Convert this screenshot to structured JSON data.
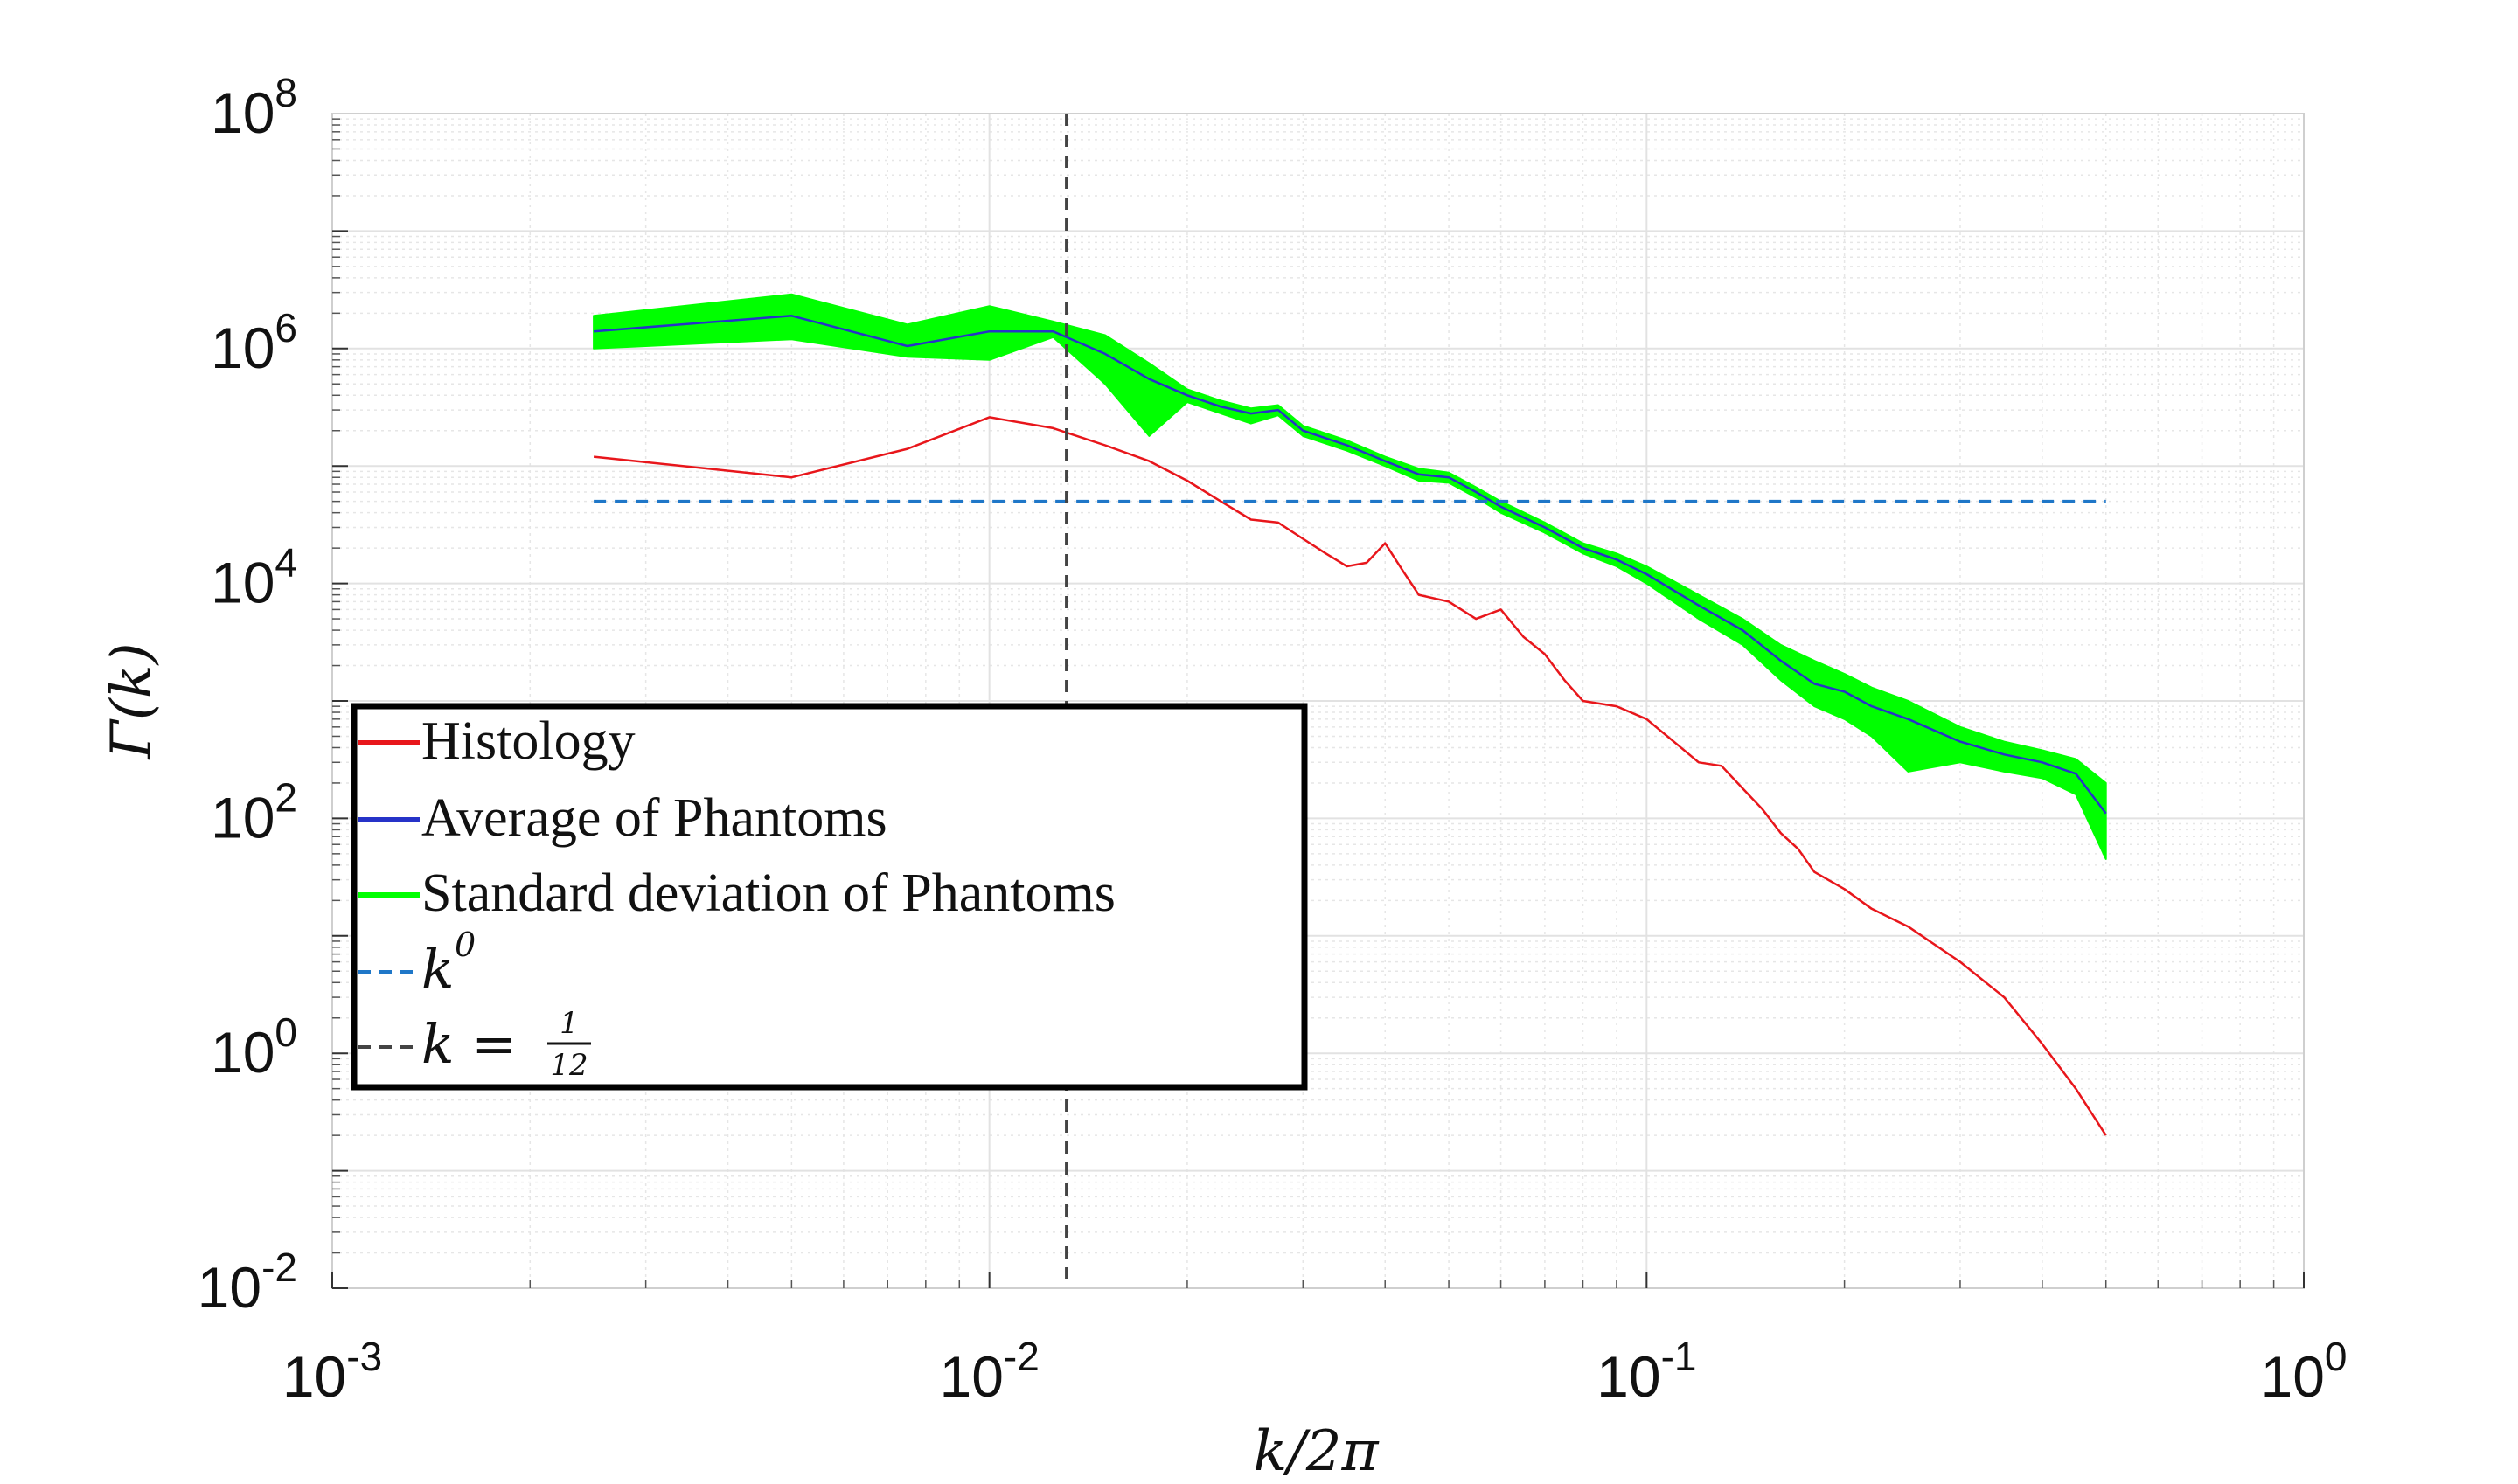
{
  "chart_data": {
    "type": "line",
    "xscale": "log",
    "yscale": "log",
    "xlim": [
      0.001,
      1
    ],
    "ylim": [
      0.01,
      100000000
    ],
    "xticks": [
      {
        "value": 0.001,
        "base": "10",
        "exp": "-3"
      },
      {
        "value": 0.01,
        "base": "10",
        "exp": "-2"
      },
      {
        "value": 0.1,
        "base": "10",
        "exp": "-1"
      },
      {
        "value": 1,
        "base": "10",
        "exp": "0"
      }
    ],
    "yticks": [
      {
        "value": 0.01,
        "base": "10",
        "exp": "-2"
      },
      {
        "value": 1,
        "base": "10",
        "exp": "0"
      },
      {
        "value": 100,
        "base": "10",
        "exp": "2"
      },
      {
        "value": 10000,
        "base": "10",
        "exp": "4"
      },
      {
        "value": 1000000,
        "base": "10",
        "exp": "6"
      },
      {
        "value": 100000000,
        "base": "10",
        "exp": "8"
      }
    ],
    "xlabel": "k/2π",
    "ylabel": "Γ(k)",
    "grid": true,
    "legend_position": "lower-left",
    "legend": [
      {
        "label": "Histology",
        "color": "#e8161b",
        "style": "solid"
      },
      {
        "label": "Average of Phantoms",
        "color": "#2633c8",
        "style": "solid"
      },
      {
        "label": "Standard deviation of Phantoms",
        "color": "#00ff00",
        "style": "solid"
      },
      {
        "label": "k",
        "sup": "0",
        "color": "#1f77c8",
        "style": "dashed"
      },
      {
        "label": "k =",
        "frac_num": "1",
        "frac_den": "12",
        "color": "#444444",
        "style": "dashed"
      }
    ],
    "reference_lines": {
      "horizontal_k0": {
        "y": 50000,
        "x_start": 0.0025,
        "x_end": 0.5
      },
      "vertical": {
        "x": 0.0131
      }
    },
    "series": [
      {
        "name": "Histology",
        "color": "#e8161b",
        "points": [
          [
            0.0025,
            120000
          ],
          [
            0.005,
            80000
          ],
          [
            0.0075,
            140000
          ],
          [
            0.01,
            260000
          ],
          [
            0.0125,
            210000
          ],
          [
            0.015,
            150000
          ],
          [
            0.0175,
            110000
          ],
          [
            0.02,
            75000
          ],
          [
            0.0225,
            50000
          ],
          [
            0.025,
            35000
          ],
          [
            0.0275,
            33000
          ],
          [
            0.03,
            24000
          ],
          [
            0.0325,
            18000
          ],
          [
            0.035,
            14000
          ],
          [
            0.0375,
            15000
          ],
          [
            0.04,
            22000
          ],
          [
            0.0425,
            13000
          ],
          [
            0.045,
            8000
          ],
          [
            0.05,
            7000
          ],
          [
            0.055,
            5000
          ],
          [
            0.06,
            6000
          ],
          [
            0.065,
            3500
          ],
          [
            0.07,
            2500
          ],
          [
            0.075,
            1500
          ],
          [
            0.08,
            1000
          ],
          [
            0.09,
            900
          ],
          [
            0.1,
            700
          ],
          [
            0.11,
            450
          ],
          [
            0.12,
            300
          ],
          [
            0.13,
            280
          ],
          [
            0.14,
            180
          ],
          [
            0.15,
            120
          ],
          [
            0.16,
            75
          ],
          [
            0.17,
            55
          ],
          [
            0.18,
            35
          ],
          [
            0.2,
            25
          ],
          [
            0.22,
            17
          ],
          [
            0.25,
            12
          ],
          [
            0.3,
            6
          ],
          [
            0.35,
            3
          ],
          [
            0.4,
            1.2
          ],
          [
            0.45,
            0.5
          ],
          [
            0.5,
            0.2
          ]
        ]
      },
      {
        "name": "Average of Phantoms",
        "color": "#2633c8",
        "points": [
          [
            0.0025,
            1400000
          ],
          [
            0.005,
            1900000
          ],
          [
            0.0075,
            1050000
          ],
          [
            0.01,
            1400000
          ],
          [
            0.0125,
            1400000
          ],
          [
            0.015,
            900000
          ],
          [
            0.0175,
            550000
          ],
          [
            0.02,
            400000
          ],
          [
            0.0225,
            320000
          ],
          [
            0.025,
            280000
          ],
          [
            0.0275,
            300000
          ],
          [
            0.03,
            200000
          ],
          [
            0.035,
            150000
          ],
          [
            0.04,
            110000
          ],
          [
            0.045,
            85000
          ],
          [
            0.05,
            80000
          ],
          [
            0.055,
            60000
          ],
          [
            0.06,
            45000
          ],
          [
            0.07,
            30000
          ],
          [
            0.08,
            20000
          ],
          [
            0.09,
            16000
          ],
          [
            0.1,
            12000
          ],
          [
            0.12,
            6500
          ],
          [
            0.14,
            4000
          ],
          [
            0.16,
            2200
          ],
          [
            0.18,
            1400
          ],
          [
            0.2,
            1200
          ],
          [
            0.22,
            900
          ],
          [
            0.25,
            700
          ],
          [
            0.3,
            450
          ],
          [
            0.35,
            350
          ],
          [
            0.4,
            300
          ],
          [
            0.45,
            240
          ],
          [
            0.5,
            110
          ]
        ]
      },
      {
        "name": "Standard deviation of Phantoms",
        "color": "#00ff00",
        "upper": [
          [
            0.0025,
            1900000
          ],
          [
            0.005,
            2900000
          ],
          [
            0.0075,
            1600000
          ],
          [
            0.01,
            2300000
          ],
          [
            0.0125,
            1700000
          ],
          [
            0.015,
            1300000
          ],
          [
            0.0175,
            750000
          ],
          [
            0.02,
            450000
          ],
          [
            0.0225,
            360000
          ],
          [
            0.025,
            310000
          ],
          [
            0.0275,
            330000
          ],
          [
            0.03,
            220000
          ],
          [
            0.035,
            165000
          ],
          [
            0.04,
            120000
          ],
          [
            0.045,
            95000
          ],
          [
            0.05,
            88000
          ],
          [
            0.055,
            66000
          ],
          [
            0.06,
            50000
          ],
          [
            0.07,
            33000
          ],
          [
            0.08,
            22000
          ],
          [
            0.09,
            18000
          ],
          [
            0.1,
            14000
          ],
          [
            0.12,
            8000
          ],
          [
            0.14,
            5000
          ],
          [
            0.16,
            3000
          ],
          [
            0.18,
            2200
          ],
          [
            0.2,
            1700
          ],
          [
            0.22,
            1300
          ],
          [
            0.25,
            1000
          ],
          [
            0.3,
            600
          ],
          [
            0.35,
            450
          ],
          [
            0.4,
            380
          ],
          [
            0.45,
            320
          ],
          [
            0.5,
            200
          ]
        ],
        "lower": [
          [
            0.0025,
            1000000
          ],
          [
            0.005,
            1200000
          ],
          [
            0.0075,
            850000
          ],
          [
            0.01,
            800000
          ],
          [
            0.0125,
            1250000
          ],
          [
            0.015,
            500000
          ],
          [
            0.0175,
            180000
          ],
          [
            0.02,
            350000
          ],
          [
            0.0225,
            280000
          ],
          [
            0.025,
            230000
          ],
          [
            0.0275,
            270000
          ],
          [
            0.03,
            180000
          ],
          [
            0.035,
            135000
          ],
          [
            0.04,
            100000
          ],
          [
            0.045,
            75000
          ],
          [
            0.05,
            72000
          ],
          [
            0.055,
            54000
          ],
          [
            0.06,
            40000
          ],
          [
            0.07,
            27000
          ],
          [
            0.08,
            18000
          ],
          [
            0.09,
            14000
          ],
          [
            0.1,
            10000
          ],
          [
            0.12,
            5000
          ],
          [
            0.14,
            3000
          ],
          [
            0.16,
            1500
          ],
          [
            0.18,
            900
          ],
          [
            0.2,
            700
          ],
          [
            0.22,
            500
          ],
          [
            0.25,
            250
          ],
          [
            0.3,
            300
          ],
          [
            0.35,
            250
          ],
          [
            0.4,
            220
          ],
          [
            0.45,
            160
          ],
          [
            0.5,
            45
          ]
        ]
      }
    ]
  }
}
